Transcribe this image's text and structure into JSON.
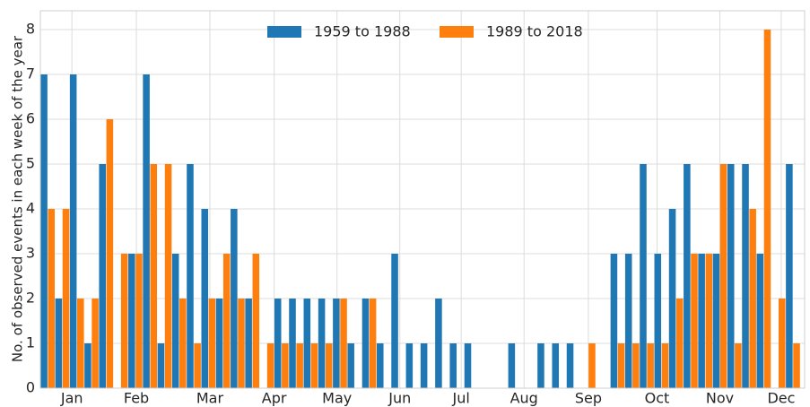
{
  "chart_data": {
    "type": "bar",
    "y_label": "No. of observed events in each week of the year",
    "x": [
      1,
      2,
      3,
      4,
      5,
      6,
      7,
      8,
      9,
      10,
      11,
      12,
      13,
      14,
      15,
      16,
      17,
      18,
      19,
      20,
      21,
      22,
      23,
      24,
      25,
      26,
      27,
      28,
      29,
      30,
      31,
      32,
      33,
      34,
      35,
      36,
      37,
      38,
      39,
      40,
      41,
      42,
      43,
      44,
      45,
      46,
      47,
      48,
      49,
      50,
      51,
      52
    ],
    "series": [
      {
        "name": "1959 to 1988",
        "color": "#1f77b4",
        "values": [
          7,
          2,
          7,
          1,
          5,
          0,
          3,
          7,
          1,
          3,
          5,
          4,
          2,
          4,
          2,
          0,
          2,
          2,
          2,
          2,
          2,
          1,
          2,
          1,
          3,
          1,
          1,
          2,
          1,
          1,
          0,
          0,
          1,
          0,
          1,
          1,
          1,
          0,
          0,
          3,
          3,
          5,
          3,
          4,
          5,
          3,
          3,
          5,
          5,
          3,
          0,
          5
        ]
      },
      {
        "name": "1989 to 2018",
        "color": "#ff7f0e",
        "values": [
          4,
          4,
          2,
          2,
          6,
          3,
          3,
          5,
          5,
          2,
          1,
          2,
          3,
          2,
          3,
          1,
          1,
          1,
          1,
          1,
          2,
          0,
          2,
          0,
          0,
          0,
          0,
          0,
          0,
          0,
          0,
          0,
          0,
          0,
          0,
          0,
          0,
          1,
          0,
          1,
          1,
          1,
          1,
          2,
          3,
          3,
          5,
          1,
          4,
          8,
          2,
          1
        ]
      }
    ],
    "xlim": [
      0.5,
      52.8
    ],
    "xticks": [
      {
        "value": 2.66,
        "label": "Jan"
      },
      {
        "value": 7.07,
        "label": "Feb"
      },
      {
        "value": 12.1,
        "label": "Mar"
      },
      {
        "value": 16.5,
        "label": "Apr"
      },
      {
        "value": 20.8,
        "label": "May"
      },
      {
        "value": 25.1,
        "label": "Jun"
      },
      {
        "value": 29.3,
        "label": "Jul"
      },
      {
        "value": 33.6,
        "label": "Aug"
      },
      {
        "value": 38.0,
        "label": "Sep"
      },
      {
        "value": 42.7,
        "label": "Oct"
      },
      {
        "value": 47.0,
        "label": "Nov"
      },
      {
        "value": 51.2,
        "label": "Dec"
      }
    ],
    "ylim": [
      0,
      8.42
    ],
    "yticks": [
      0,
      1,
      2,
      3,
      4,
      5,
      6,
      7,
      8
    ],
    "grid": true,
    "legend": "top"
  }
}
